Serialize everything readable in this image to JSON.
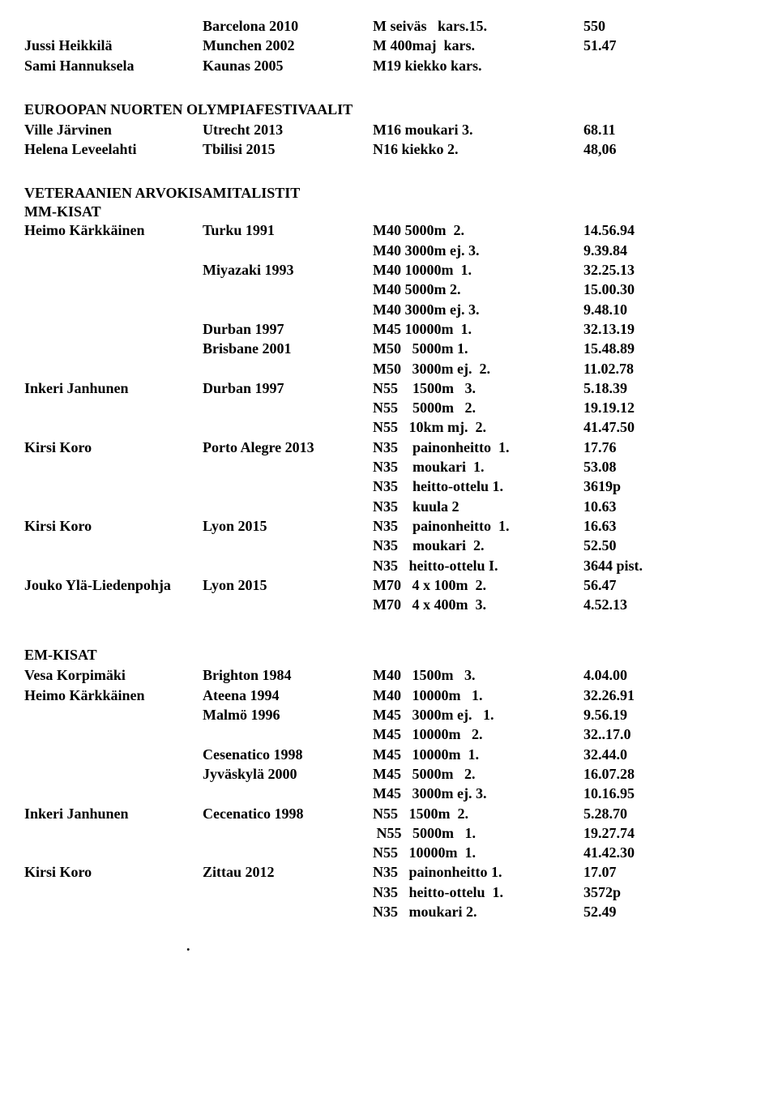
{
  "top_rows": [
    {
      "name": "",
      "venue": "Barcelona  2010",
      "event": "M seiväs   kars.15.",
      "result": "550"
    },
    {
      "name": "Jussi Heikkilä",
      "venue": "Munchen 2002",
      "event": "M 400maj  kars.",
      "result": "51.47"
    },
    {
      "name": "Sami Hannuksela",
      "venue": "Kaunas 2005",
      "event": "M19 kiekko kars.",
      "result": ""
    }
  ],
  "section1_title": "EUROOPAN NUORTEN OLYMPIAFESTIVAALIT",
  "section1_rows": [
    {
      "name": "Ville Järvinen",
      "venue": "Utrecht 2013",
      "event": "M16 moukari 3.",
      "result": "68.11"
    },
    {
      "name": "Helena Leveelahti",
      "venue": "Tbilisi 2015",
      "event": "N16 kiekko 2.",
      "result": "48,06"
    }
  ],
  "section2_title": "VETERAANIEN  ARVOKISAMITALISTIT",
  "section2_sub": "MM-KISAT",
  "section2_rows": [
    {
      "name": "Heimo Kärkkäinen",
      "venue": "Turku 1991",
      "event": "M40 5000m  2.",
      "result": "14.56.94"
    },
    {
      "name": "",
      "venue": "",
      "event": "M40 3000m ej. 3.",
      "result": "9.39.84"
    },
    {
      "name": "",
      "venue": "Miyazaki 1993",
      "event": "M40 10000m  1.",
      "result": "32.25.13"
    },
    {
      "name": "",
      "venue": "",
      "event": "M40 5000m 2.",
      "result": "15.00.30"
    },
    {
      "name": "",
      "venue": "",
      "event": "M40 3000m ej. 3.",
      "result": "9.48.10"
    },
    {
      "name": "",
      "venue": "Durban 1997",
      "event": "M45 10000m  1.",
      "result": "32.13.19"
    },
    {
      "name": "",
      "venue": "Brisbane 2001",
      "event": "M50   5000m 1.",
      "result": "15.48.89"
    },
    {
      "name": "",
      "venue": "",
      "event": "M50   3000m ej.  2.",
      "result": "11.02.78"
    },
    {
      "name": "Inkeri Janhunen",
      "venue": "Durban  1997",
      "event": "N55    1500m   3.",
      "result": "5.18.39"
    },
    {
      "name": "",
      "venue": "",
      "event": "N55    5000m   2.",
      "result": "19.19.12"
    },
    {
      "name": "",
      "venue": "",
      "event": "N55   10km mj.  2.",
      "result": "41.47.50"
    },
    {
      "name": "Kirsi Koro",
      "venue": "Porto Alegre 2013",
      "event": "N35    painonheitto  1.",
      "result": "17.76"
    },
    {
      "name": "",
      "venue": "",
      "event": "N35    moukari  1.",
      "result": "53.08"
    },
    {
      "name": "",
      "venue": "",
      "event": "N35    heitto-ottelu 1.",
      "result": "3619p"
    },
    {
      "name": "",
      "venue": "",
      "event": "N35    kuula 2",
      "result": "10.63"
    },
    {
      "name": "Kirsi Koro",
      "venue": "Lyon 2015",
      "event": "N35    painonheitto  1.",
      "result": "16.63"
    },
    {
      "name": "",
      "venue": "",
      "event": "N35    moukari  2.",
      "result": "52.50"
    },
    {
      "name": "",
      "venue": "",
      "event": "N35   heitto-ottelu I.",
      "result": "3644 pist."
    },
    {
      "name": "Jouko Ylä-Liedenpohja",
      "venue": "Lyon 2015",
      "event": "M70   4 x 100m  2.",
      "result": "56.47"
    },
    {
      "name": "",
      "venue": "",
      "event": "M70   4 x 400m  3.",
      "result": "4.52.13"
    }
  ],
  "section3_title": "EM-KISAT",
  "section3_rows": [
    {
      "name": "Vesa Korpimäki",
      "venue": "Brighton  1984",
      "event": "M40   1500m   3.",
      "result": "4.04.00"
    },
    {
      "name": "Heimo Kärkkäinen",
      "venue": "Ateena  1994",
      "event": "M40   10000m   1.",
      "result": "32.26.91"
    },
    {
      "name": "",
      "venue": "Malmö   1996",
      "event": "M45   3000m ej.   1.",
      "result": "9.56.19"
    },
    {
      "name": "",
      "venue": "",
      "event": "M45   10000m   2.",
      "result": "32..17.0"
    },
    {
      "name": "",
      "venue": "Cesenatico 1998",
      "event": "M45   10000m  1.",
      "result": "32.44.0"
    },
    {
      "name": "",
      "venue": "Jyväskylä  2000",
      "event": "M45   5000m   2.",
      "result": "16.07.28"
    },
    {
      "name": "",
      "venue": "",
      "event": "M45   3000m ej. 3.",
      "result": "10.16.95"
    },
    {
      "name": "Inkeri Janhunen",
      "venue": "Cecenatico 1998",
      "event": "N55   1500m  2.",
      "result": "5.28.70"
    },
    {
      "name": "",
      "venue": "",
      "event": " N55   5000m   1.",
      "result": "19.27.74"
    },
    {
      "name": "",
      "venue": "",
      "event": "N55   10000m  1.",
      "result": "41.42.30"
    },
    {
      "name": "Kirsi Koro",
      "venue": "Zittau  2012",
      "event": "N35   painonheitto 1.",
      "result": "17.07"
    },
    {
      "name": "",
      "venue": "",
      "event": "N35   heitto-ottelu  1.",
      "result": "3572p"
    },
    {
      "name": "",
      "venue": "",
      "event": "N35   moukari 2.",
      "result": "52.49"
    }
  ],
  "final_dot": "."
}
